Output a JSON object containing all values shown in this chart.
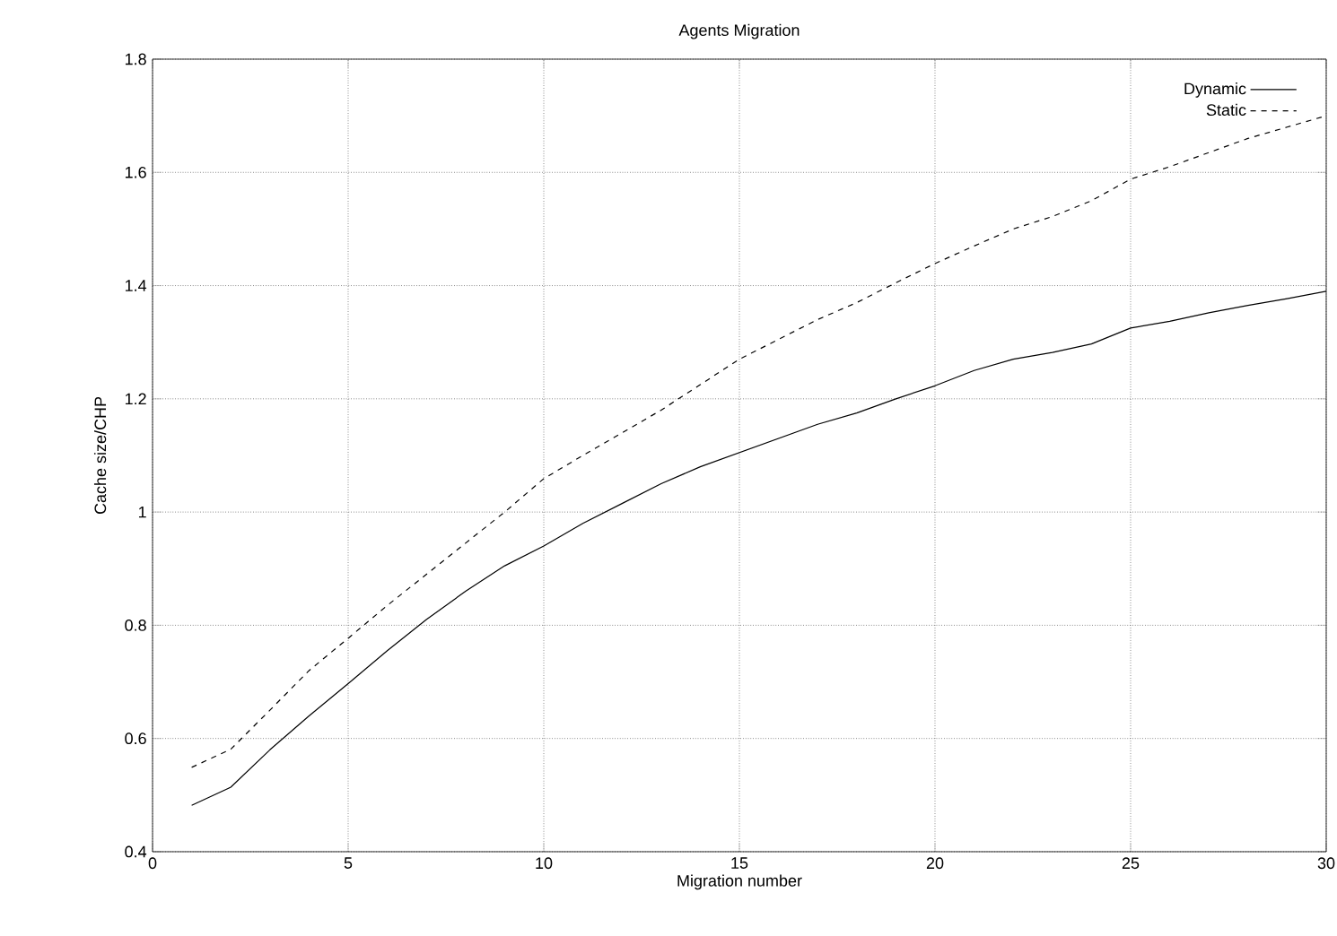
{
  "chart_data": {
    "type": "line",
    "title": "Agents Migration",
    "xlabel": "Migration number",
    "ylabel": "Cache size/CHP",
    "x": [
      1,
      2,
      3,
      4,
      5,
      6,
      7,
      8,
      9,
      10,
      11,
      12,
      13,
      14,
      15,
      16,
      17,
      18,
      19,
      20,
      21,
      22,
      23,
      24,
      25,
      26,
      27,
      28,
      29,
      30
    ],
    "series": [
      {
        "name": "Dynamic",
        "color": "#000000",
        "line_style": "solid",
        "values": [
          0.482,
          0.514,
          0.58,
          0.64,
          0.697,
          0.755,
          0.81,
          0.86,
          0.905,
          0.94,
          0.98,
          1.015,
          1.05,
          1.08,
          1.105,
          1.13,
          1.155,
          1.175,
          1.2,
          1.223,
          1.25,
          1.27,
          1.282,
          1.297,
          1.325,
          1.337,
          1.352,
          1.365,
          1.377,
          1.39
        ]
      },
      {
        "name": "Static",
        "color": "#000000",
        "line_style": "dashed",
        "values": [
          0.549,
          0.581,
          0.65,
          0.72,
          0.777,
          0.835,
          0.89,
          0.945,
          1.0,
          1.059,
          1.1,
          1.14,
          1.18,
          1.225,
          1.27,
          1.305,
          1.34,
          1.37,
          1.405,
          1.439,
          1.47,
          1.5,
          1.522,
          1.55,
          1.588,
          1.61,
          1.635,
          1.66,
          1.68,
          1.7
        ]
      }
    ],
    "xlim": [
      0,
      30
    ],
    "ylim": [
      0.4,
      1.8
    ],
    "xticks": [
      0,
      5,
      10,
      15,
      20,
      25,
      30
    ],
    "yticks": [
      0.4,
      0.6,
      0.8,
      1,
      1.2,
      1.4,
      1.6,
      1.8
    ],
    "grid": true,
    "legend": "top right"
  }
}
